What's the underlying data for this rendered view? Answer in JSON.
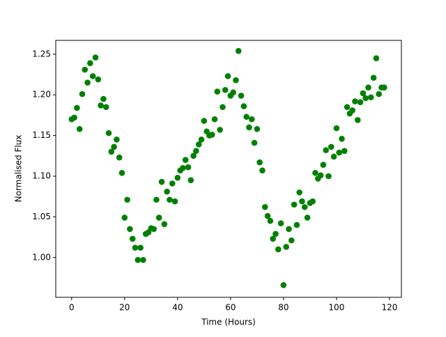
{
  "chart_data": {
    "type": "scatter",
    "xlabel": "Time (Hours)",
    "ylabel": "Normalised Flux",
    "color": "#008000",
    "x": [
      0,
      1,
      2,
      3,
      4,
      5,
      6,
      7,
      8,
      9,
      10,
      11,
      12,
      13,
      14,
      15,
      16,
      17,
      18,
      19,
      20,
      21,
      22,
      23,
      24,
      25,
      26,
      27,
      28,
      29,
      30,
      31,
      32,
      33,
      34,
      35,
      36,
      37,
      38,
      39,
      40,
      41,
      42,
      43,
      44,
      45,
      46,
      47,
      48,
      49,
      50,
      51,
      52,
      53,
      54,
      55,
      56,
      57,
      58,
      59,
      60,
      61,
      62,
      63,
      64,
      65,
      66,
      67,
      68,
      69,
      70,
      71,
      72,
      73,
      74,
      75,
      76,
      77,
      78,
      79,
      80,
      81,
      82,
      83,
      84,
      85,
      86,
      87,
      88,
      89,
      90,
      91,
      92,
      93,
      94,
      95,
      96,
      97,
      98,
      99,
      100,
      101,
      102,
      103,
      104,
      105,
      106,
      107,
      108,
      109,
      110,
      111,
      112,
      113,
      114,
      115,
      116,
      117,
      118
    ],
    "values": [
      1.17,
      1.172,
      1.184,
      1.158,
      1.201,
      1.231,
      1.215,
      1.239,
      1.223,
      1.246,
      1.219,
      1.187,
      1.195,
      1.185,
      1.153,
      1.13,
      1.136,
      1.145,
      1.123,
      1.104,
      1.049,
      1.071,
      1.035,
      1.023,
      1.012,
      0.997,
      1.012,
      0.997,
      1.029,
      1.031,
      1.036,
      1.035,
      1.071,
      1.049,
      1.093,
      1.041,
      1.081,
      1.071,
      1.091,
      1.069,
      1.098,
      1.107,
      1.11,
      1.12,
      1.111,
      1.095,
      1.125,
      1.131,
      1.139,
      1.145,
      1.168,
      1.155,
      1.15,
      1.151,
      1.17,
      1.204,
      1.157,
      1.185,
      1.206,
      1.223,
      1.199,
      1.203,
      1.218,
      1.254,
      1.199,
      1.186,
      1.173,
      1.16,
      1.17,
      1.141,
      1.158,
      1.117,
      1.107,
      1.062,
      1.051,
      1.045,
      1.023,
      1.029,
      1.01,
      1.042,
      0.966,
      1.013,
      1.035,
      1.021,
      1.065,
      1.04,
      1.08,
      1.069,
      1.062,
      1.049,
      1.067,
      1.069,
      1.104,
      1.097,
      1.101,
      1.114,
      1.132,
      1.1,
      1.136,
      1.124,
      1.159,
      1.129,
      1.146,
      1.131,
      1.185,
      1.177,
      1.181,
      1.192,
      1.169,
      1.191,
      1.202,
      1.196,
      1.209,
      1.197,
      1.221,
      1.245,
      1.201,
      1.209,
      1.209
    ],
    "xlim": [
      -6,
      124.5
    ],
    "ylim": [
      0.951,
      1.267
    ],
    "xticks": [
      0,
      20,
      40,
      60,
      80,
      100,
      120
    ],
    "yticks": [
      {
        "value": 1.0,
        "label": "1.00"
      },
      {
        "value": 1.05,
        "label": "1.05"
      },
      {
        "value": 1.1,
        "label": "1.10"
      },
      {
        "value": 1.15,
        "label": "1.15"
      },
      {
        "value": 1.2,
        "label": "1.20"
      },
      {
        "value": 1.25,
        "label": "1.25"
      }
    ]
  }
}
